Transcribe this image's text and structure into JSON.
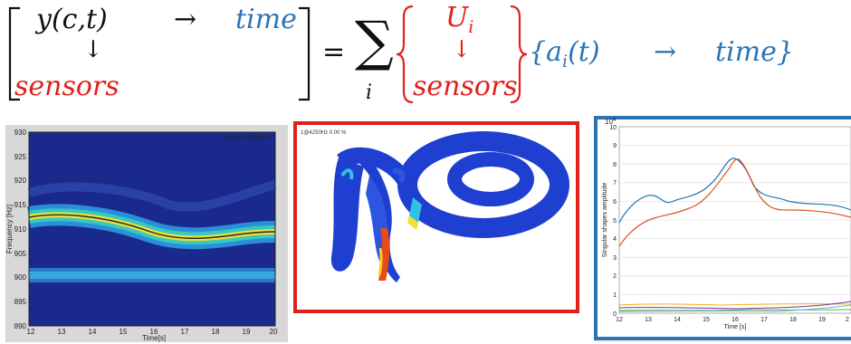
{
  "equation": {
    "lhs_top_left": "y(c,t)",
    "lhs_arrow_right": "→",
    "lhs_top_right": "time",
    "lhs_arrow_down": "↓",
    "lhs_bottom": "sensors",
    "equals": "=",
    "sum_symbol": "∑",
    "sum_index": "i",
    "mode_top": "U",
    "mode_sub": "i",
    "mode_arrow_down": "↓",
    "mode_bottom": "sensors",
    "coef": "{a",
    "coef_sub": "i",
    "coef_rest": "(t)",
    "coef_arrow": "→",
    "coef_time": "time}"
  },
  "colors": {
    "black": "#111111",
    "blue": "#2e74b5",
    "red": "#e0201b",
    "spectro_bg": "#1a2a8c",
    "shape_blue": "#1f3fd0"
  },
  "spectrogram": {
    "title": "spectro Channel",
    "ylabel": "Frequency [Hz]",
    "xlabel": "Time[s]",
    "yticks": [
      "930",
      "925",
      "920",
      "915",
      "910",
      "905",
      "900",
      "895",
      "890"
    ],
    "xticks": [
      "12",
      "13",
      "14",
      "15",
      "16",
      "17",
      "18",
      "19",
      "20"
    ]
  },
  "mode_shape": {
    "caption": "1@4250Hz 0.00 %"
  },
  "singular_plot": {
    "exponent": "10",
    "exponent_sup": "4",
    "ylabel": "Singular shapes amplitude",
    "xlabel": "Time [s]",
    "yticks": [
      "10",
      "9",
      "8",
      "7",
      "6",
      "5",
      "4",
      "3",
      "2",
      "1",
      "0"
    ],
    "xticks": [
      "12",
      "13",
      "14",
      "15",
      "16",
      "17",
      "18",
      "19",
      "2"
    ]
  }
}
